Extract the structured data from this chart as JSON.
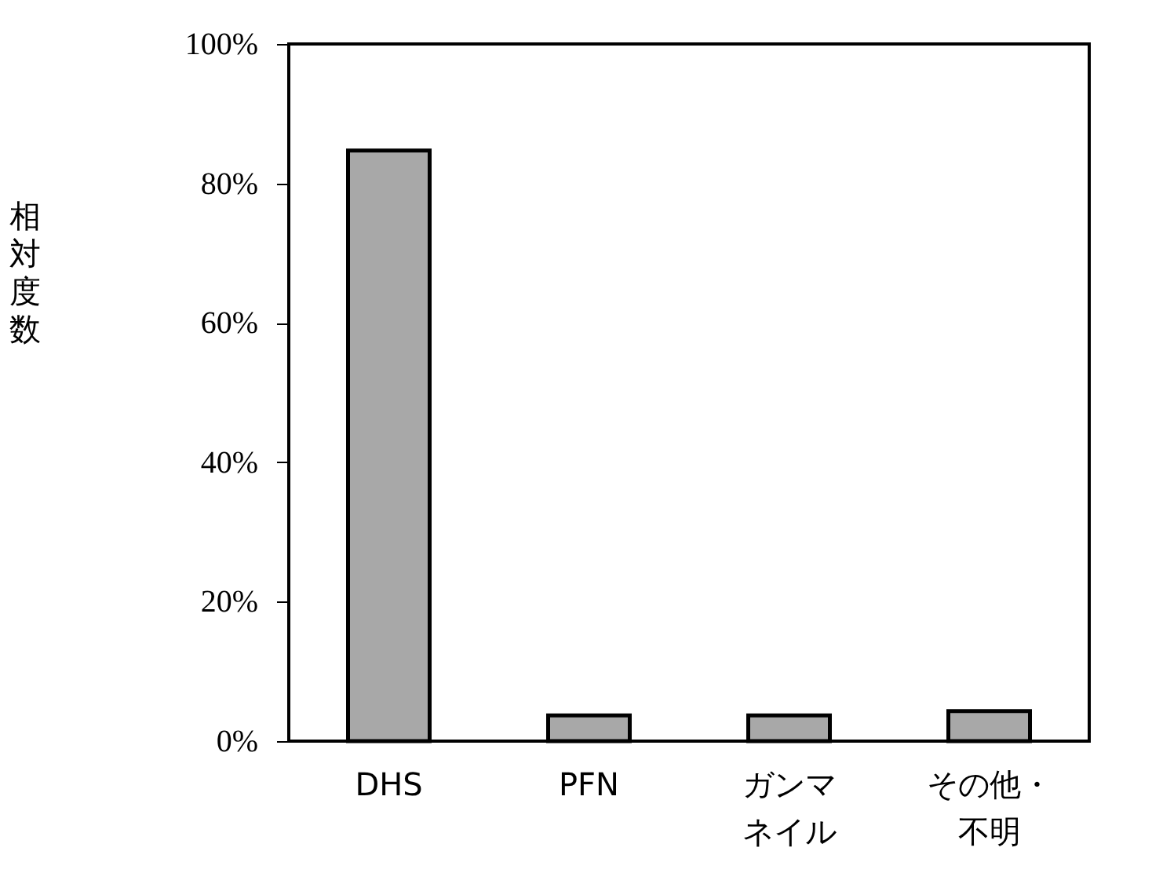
{
  "chart_data": {
    "type": "bar",
    "ylabel": "相対度数",
    "categories": [
      "DHS",
      "PFN",
      "ガンマネイル",
      "その他・不明"
    ],
    "values": [
      84.7,
      3.7,
      3.7,
      4.3
    ],
    "color": "#a8a8a8",
    "ylim": [
      0,
      100
    ],
    "yticks": [
      {
        "value": 0,
        "label": "0%"
      },
      {
        "value": 20,
        "label": "20%"
      },
      {
        "value": 40,
        "label": "40%"
      },
      {
        "value": 60,
        "label": "60%"
      },
      {
        "value": 80,
        "label": "80%"
      },
      {
        "value": 100,
        "label": "100%"
      }
    ],
    "grid": false
  }
}
